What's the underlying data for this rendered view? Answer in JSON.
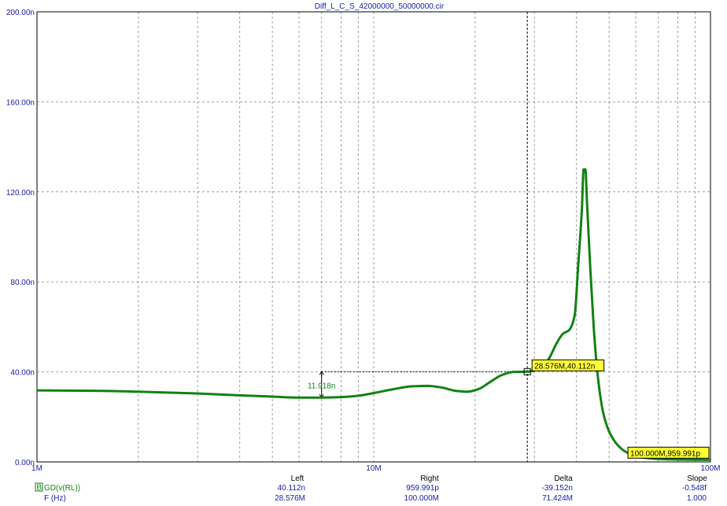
{
  "colors": {
    "axis_text": "#1a1aa8",
    "trace": "#128212",
    "grid": "#a0a0a0",
    "label_bg": "#ffff33"
  },
  "chart_data": {
    "type": "line",
    "title": "Diff_L_C_S_42000000_50000000.cir",
    "x_scale": "log",
    "xlim": [
      1000000,
      100000000
    ],
    "ylim": [
      0,
      2e-07
    ],
    "x_tick_labels": [
      {
        "value": 1000000,
        "label": "1M"
      },
      {
        "value": 10000000,
        "label": "10M"
      },
      {
        "value": 100000000,
        "label": "100M"
      }
    ],
    "y_tick_labels": [
      {
        "value": 0,
        "label": "0.00n"
      },
      {
        "value": 4e-08,
        "label": "40.00n"
      },
      {
        "value": 8e-08,
        "label": "80.00n"
      },
      {
        "value": 1.2e-07,
        "label": "120.00n"
      },
      {
        "value": 1.6e-07,
        "label": "160.00n"
      },
      {
        "value": 2e-07,
        "label": "200.00n"
      }
    ],
    "grid": true,
    "series": [
      {
        "name": "GD(v(RL))",
        "color": "#128212",
        "x": [
          1000000,
          1500000,
          2000000,
          3000000,
          4000000,
          5000000,
          6000000,
          7000000,
          8000000,
          9000000,
          10000000,
          11500000,
          13000000,
          14500000,
          16000000,
          17500000,
          19000000,
          20500000,
          22000000,
          24000000,
          26000000,
          28576000,
          31000000,
          33000000,
          35000000,
          36500000,
          38000000,
          39500000,
          40500000,
          41500000,
          42000000,
          42500000,
          43000000,
          44000000,
          45000000,
          46000000,
          47000000,
          48000000,
          50000000,
          53000000,
          56000000,
          60000000,
          65000000,
          70000000,
          80000000,
          90000000,
          100000000
        ],
        "y": [
          3.18e-08,
          3.16e-08,
          3.12e-08,
          3.04e-08,
          2.96e-08,
          2.9e-08,
          2.86e-08,
          2.86e-08,
          2.88e-08,
          2.94e-08,
          3.06e-08,
          3.24e-08,
          3.36e-08,
          3.38e-08,
          3.3e-08,
          3.16e-08,
          3.12e-08,
          3.24e-08,
          3.52e-08,
          3.86e-08,
          4e-08,
          4.01e-08,
          4.14e-08,
          4.55e-08,
          5.3e-08,
          5.7e-08,
          5.85e-08,
          6.5e-08,
          8.8e-08,
          1.12e-07,
          1.3e-07,
          1.3e-07,
          1.15e-07,
          8.5e-08,
          6e-08,
          4.2e-08,
          3e-08,
          2.2e-08,
          1.35e-08,
          7.5e-09,
          4.5e-09,
          2.6e-09,
          1.7e-09,
          1.3e-09,
          1.05e-09,
          9.8e-10,
          9.6e-10
        ]
      }
    ],
    "annotations": {
      "left_cursor_label": "28.576M,40.112n",
      "right_cursor_label": "100.000M,959.991p",
      "left_cursor_x": 28576000,
      "left_cursor_y": 4.0112e-08,
      "right_cursor_x": 100000000,
      "right_cursor_y": 9.59991e-10,
      "dimension_label": "11.918n",
      "dimension_x": 7000000,
      "dimension_y_low": 2.86e-08,
      "dimension_y_high": 4.0112e-08
    }
  },
  "readout": {
    "headers": {
      "left": "Left",
      "right": "Right",
      "delta": "Delta",
      "slope": "Slope"
    },
    "rows": [
      {
        "badge": "B",
        "name": "GD(v(RL))",
        "left": "40.112n",
        "right": "959.991p",
        "delta": "-39.152n",
        "slope": "-0.548f"
      },
      {
        "badge": "",
        "name": "F (Hz)",
        "left": "28.576M",
        "right": "100.000M",
        "delta": "71.424M",
        "slope": "1.000"
      }
    ]
  }
}
